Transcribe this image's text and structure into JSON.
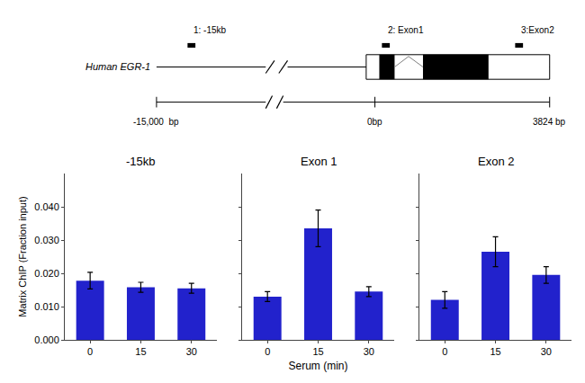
{
  "chart_data": [
    {
      "type": "bar",
      "title": "-15kb",
      "categories": [
        "0",
        "15",
        "30"
      ],
      "values": [
        0.0178,
        0.0158,
        0.0155
      ],
      "errors": [
        0.0025,
        0.0015,
        0.0015
      ],
      "color": "#2222CC",
      "ylabel": "Matrix ChIP (Fraction input)",
      "ylim": [
        0,
        0.05
      ],
      "yticks": [
        {
          "value": 0.0,
          "label": "0.000"
        },
        {
          "value": 0.01,
          "label": "0.010"
        },
        {
          "value": 0.02,
          "label": "0.020"
        },
        {
          "value": 0.03,
          "label": "0.030"
        },
        {
          "value": 0.04,
          "label": "0.040"
        }
      ],
      "grid": false
    },
    {
      "type": "bar",
      "title": "Exon 1",
      "categories": [
        "0",
        "15",
        "30"
      ],
      "values": [
        0.013,
        0.0335,
        0.0145
      ],
      "errors": [
        0.0015,
        0.0055,
        0.0015
      ],
      "color": "#2222CC",
      "ylim": [
        0,
        0.05
      ],
      "yticks": [
        0.0,
        0.01,
        0.02,
        0.03,
        0.04
      ],
      "tick_labels": "x",
      "grid": false
    },
    {
      "type": "bar",
      "title": "Exon 2",
      "categories": [
        "0",
        "15",
        "30"
      ],
      "values": [
        0.012,
        0.0265,
        0.0195
      ],
      "errors": [
        0.0025,
        0.0045,
        0.0025
      ],
      "color": "#2222CC",
      "ylim": [
        0,
        0.05
      ],
      "yticks": [
        0.0,
        0.01,
        0.02,
        0.03,
        0.04
      ],
      "tick_labels": "x",
      "grid": false
    }
  ],
  "xlabel": "Serum (min)",
  "annotations": [
    "Human EGR-1",
    "-15,000  bp",
    "0bp",
    "3824 bp",
    "1: -15kb",
    "2: Exon1",
    "3:Exon2"
  ]
}
